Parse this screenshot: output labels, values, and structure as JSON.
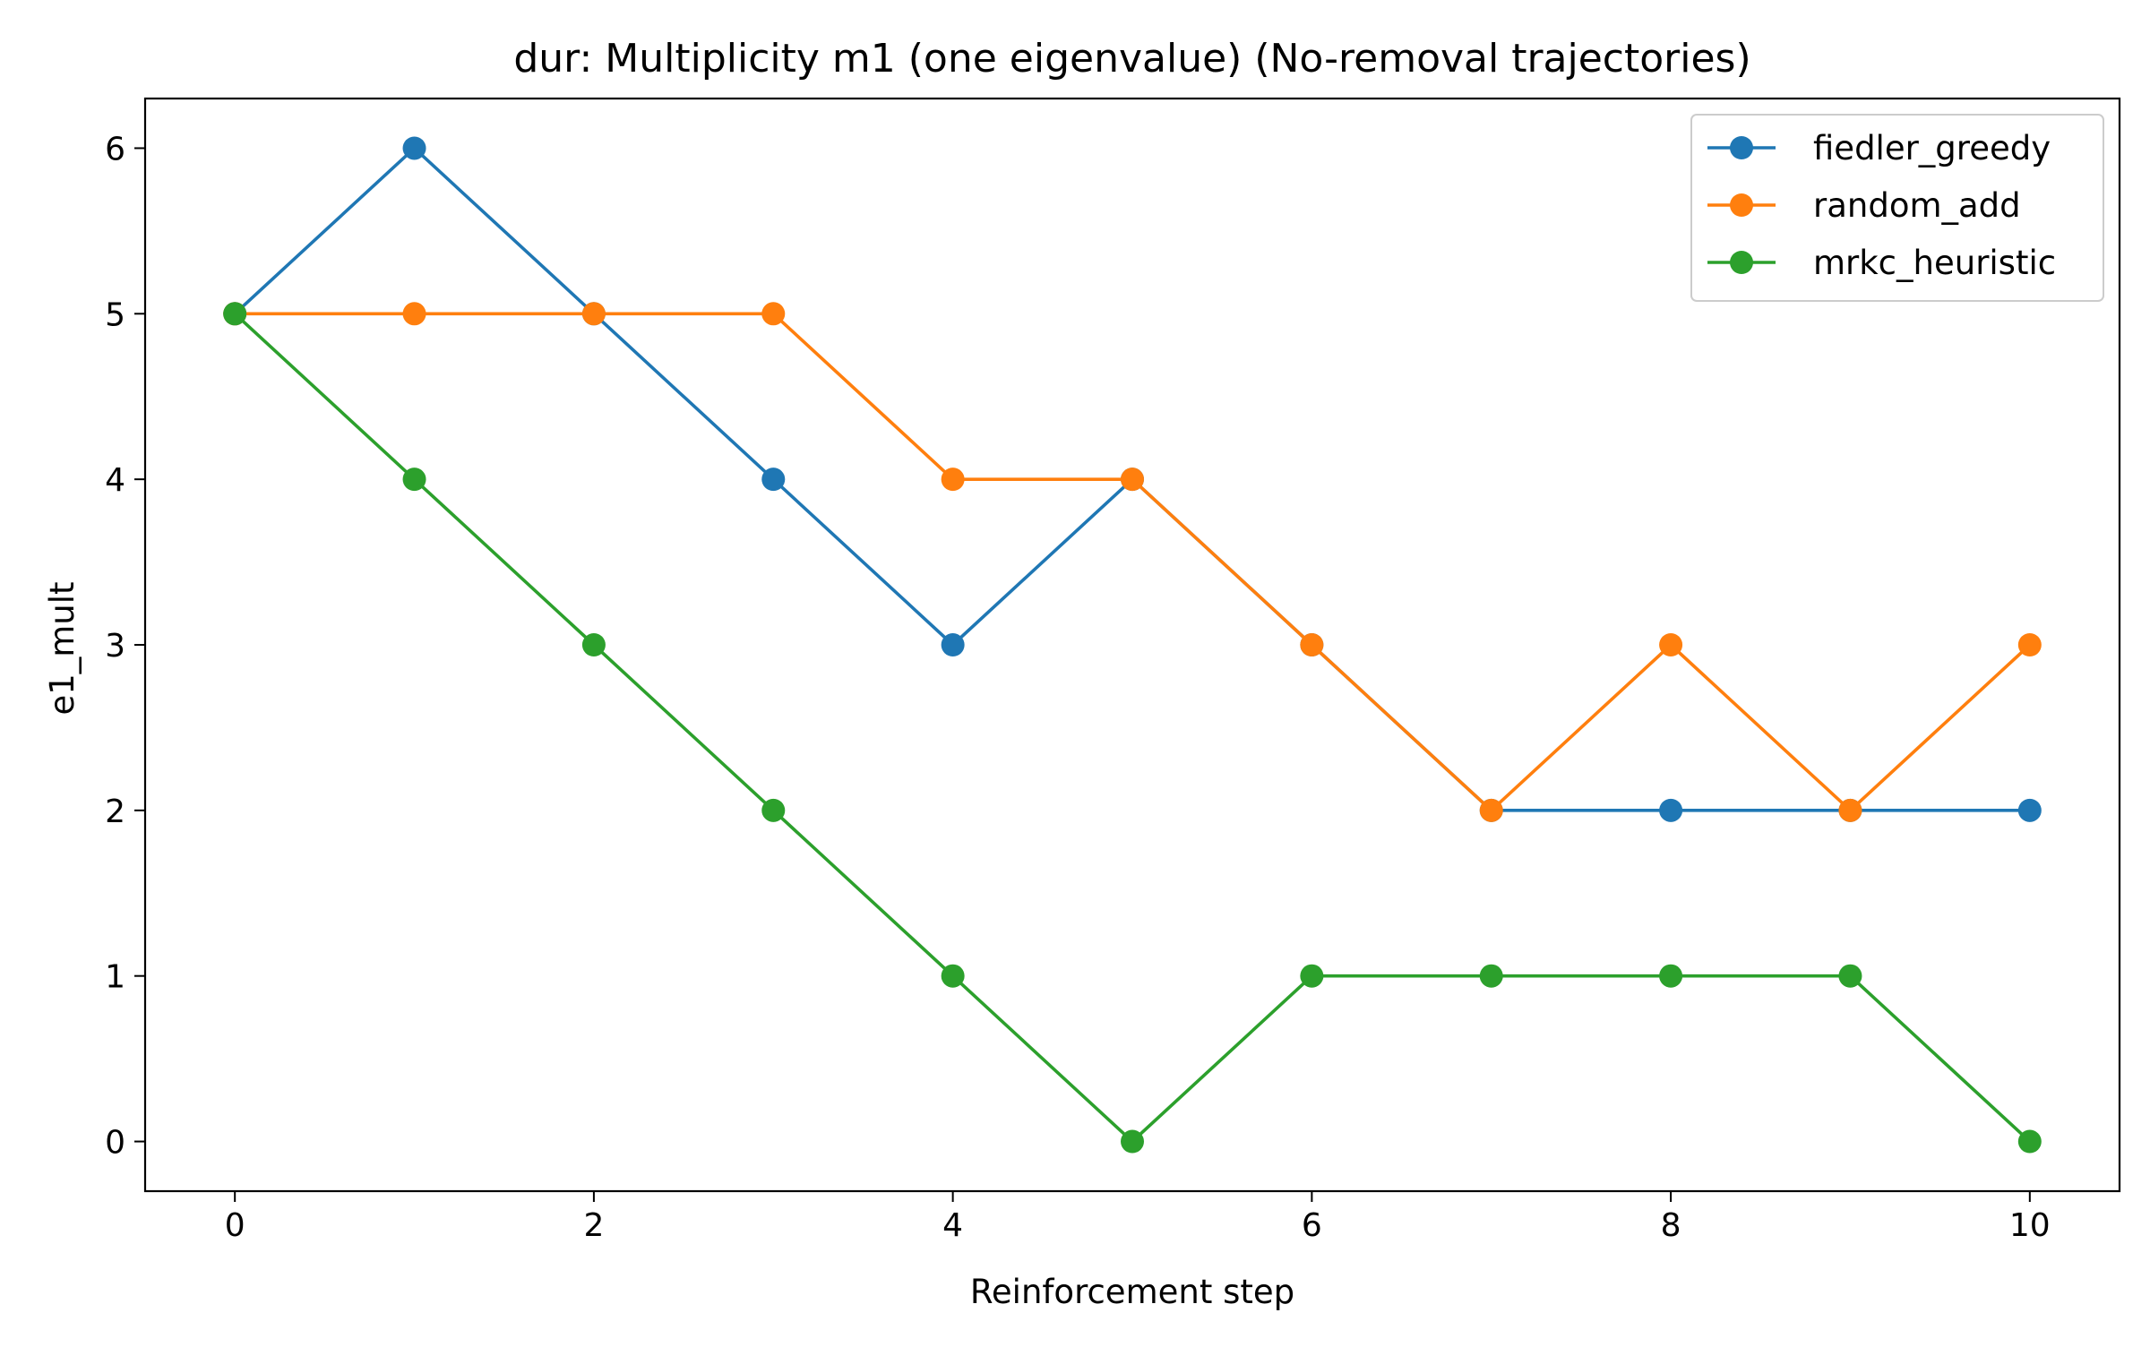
{
  "chart_data": {
    "type": "line",
    "title": "dur: Multiplicity m1 (one eigenvalue) (No-removal trajectories)",
    "xlabel": "Reinforcement step",
    "ylabel": "e1_mult",
    "xlim": [
      -0.5,
      10.5
    ],
    "ylim": [
      -0.3,
      6.3
    ],
    "xticks": [
      0,
      2,
      4,
      6,
      8,
      10
    ],
    "yticks": [
      0,
      1,
      2,
      3,
      4,
      5,
      6
    ],
    "grid": false,
    "legend_position": "top-right",
    "x": [
      0,
      1,
      2,
      3,
      4,
      5,
      6,
      7,
      8,
      9,
      10
    ],
    "series": [
      {
        "name": "fiedler_greedy",
        "color": "#1f77b4",
        "marker": "circle",
        "values": [
          5,
          6,
          5,
          4,
          3,
          4,
          3,
          2,
          2,
          2,
          2
        ]
      },
      {
        "name": "random_add",
        "color": "#ff7f0e",
        "marker": "circle",
        "values": [
          5,
          5,
          5,
          5,
          4,
          4,
          3,
          2,
          3,
          2,
          3
        ]
      },
      {
        "name": "mrkc_heuristic",
        "color": "#2ca02c",
        "marker": "circle",
        "values": [
          5,
          4,
          3,
          2,
          1,
          0,
          1,
          1,
          1,
          1,
          0
        ]
      }
    ]
  }
}
